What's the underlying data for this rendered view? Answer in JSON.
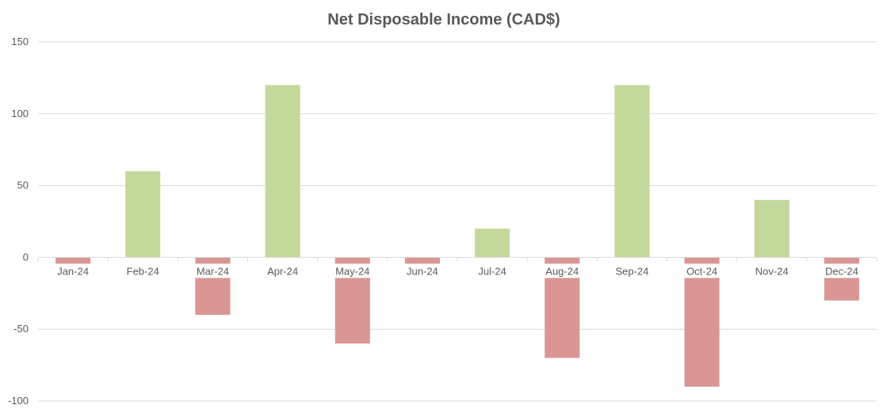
{
  "chart_data": {
    "type": "bar",
    "title": "Net Disposable Income (CAD$)",
    "categories": [
      "Jan-24",
      "Feb-24",
      "Mar-24",
      "Apr-24",
      "May-24",
      "Jun-24",
      "Jul-24",
      "Aug-24",
      "Sep-24",
      "Oct-24",
      "Nov-24",
      "Dec-24"
    ],
    "values": [
      -5,
      60,
      -40,
      120,
      -60,
      -5,
      20,
      -70,
      120,
      -90,
      40,
      -30
    ],
    "ylim": [
      -100,
      150
    ],
    "yticks": [
      -100,
      -50,
      0,
      50,
      100,
      150
    ],
    "ytick_labels": [
      "-100",
      "-50",
      "0",
      "50",
      "100",
      "150"
    ],
    "grid": true,
    "legend": "none",
    "colors": {
      "positive": "#c4d89b",
      "negative": "#d99694"
    }
  }
}
